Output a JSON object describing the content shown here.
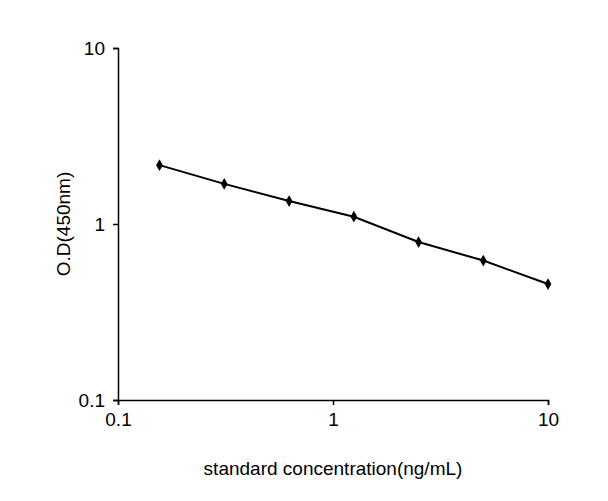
{
  "chart_data": {
    "type": "line",
    "x_label": "standard concentration(ng/mL)",
    "y_label": "O.D(450nm)",
    "x": [
      0.156,
      0.312,
      0.625,
      1.25,
      2.5,
      5,
      10
    ],
    "values": [
      2.16,
      1.69,
      1.35,
      1.1,
      0.79,
      0.62,
      0.456
    ],
    "color": "#000000",
    "marker": "diamond",
    "log": true,
    "grid": false,
    "xlim": [
      0.1,
      10
    ],
    "ylim": [
      0.1,
      10
    ],
    "xticks": [
      0.1,
      1,
      10
    ],
    "yticks": [
      0.1,
      1,
      10
    ]
  }
}
